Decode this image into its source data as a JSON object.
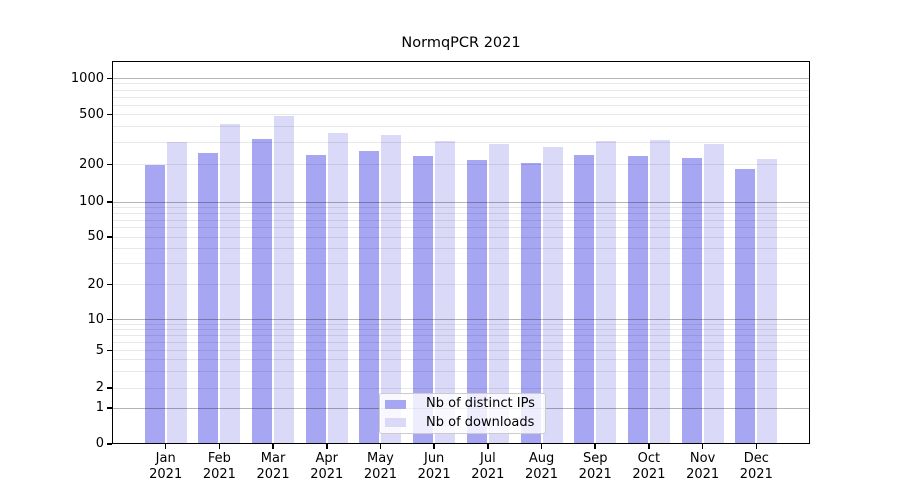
{
  "chart_data": {
    "type": "bar",
    "title": "NormqPCR 2021",
    "categories": [
      "Jan",
      "Feb",
      "Mar",
      "Apr",
      "May",
      "Jun",
      "Jul",
      "Aug",
      "Sep",
      "Oct",
      "Nov",
      "Dec"
    ],
    "category_year": "2021",
    "series": [
      {
        "name": "Nb of distinct IPs",
        "color": "#a6a6f3",
        "values": [
          197,
          248,
          318,
          240,
          256,
          233,
          219,
          204,
          237,
          233,
          227,
          184
        ]
      },
      {
        "name": "Nb of downloads",
        "color": "#dadaf8",
        "values": [
          300,
          420,
          490,
          355,
          345,
          306,
          292,
          276,
          310,
          311,
          290,
          222
        ]
      }
    ],
    "yaxis": {
      "scale": "symlog",
      "tick_labels": [
        0,
        1,
        2,
        5,
        10,
        20,
        50,
        100,
        200,
        500,
        1000
      ],
      "major_gridlines": [
        1,
        10,
        100,
        1000
      ],
      "minor_decades": [
        1,
        10,
        100
      ],
      "minor_multipliers": [
        2,
        3,
        4,
        5,
        6,
        7,
        8,
        9
      ]
    },
    "legend": {
      "position": "lower-center"
    },
    "grid": true,
    "colors": {
      "spine": "#000000",
      "major_grid": "rgba(0,0,0,0.29)",
      "minor_grid": "rgba(0,0,0,0.09)",
      "text": "#000000"
    }
  }
}
